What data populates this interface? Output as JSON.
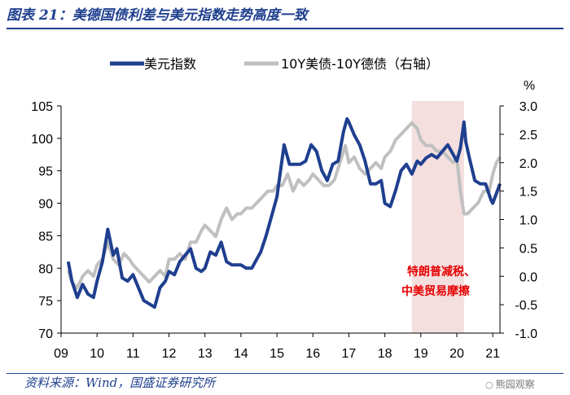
{
  "header": {
    "title": "图表 21：美德国债利差与美元指数走势高度一致"
  },
  "source": "资料来源：Wind，国盛证券研究所",
  "watermark": "熊园观察",
  "chart_data": {
    "type": "line",
    "legend": [
      "美元指数",
      "10Y美债-10Y德债（右轴）"
    ],
    "x_tick_labels": [
      "09",
      "10",
      "11",
      "12",
      "13",
      "14",
      "15",
      "16",
      "17",
      "18",
      "19",
      "20",
      "21"
    ],
    "x_range": [
      2009.0,
      2021.2
    ],
    "y_left": {
      "range": [
        70,
        105
      ],
      "ticks": [
        "70",
        "75",
        "80",
        "85",
        "90",
        "95",
        "100",
        "105"
      ]
    },
    "y_right": {
      "range": [
        -1.0,
        3.0
      ],
      "unit": "%",
      "ticks": [
        "-1.0",
        "-0.5",
        "0.0",
        "0.5",
        "1.0",
        "1.5",
        "2.0",
        "2.5",
        "3.0"
      ]
    },
    "highlight": {
      "x_start": 2018.75,
      "x_end": 2020.2,
      "color": "#f5dede",
      "annotation": [
        "特朗普减税、",
        "中美贸易摩擦"
      ]
    },
    "colors": {
      "usd_index": "#1f3f8f",
      "spread": "#c0c0c0",
      "axis": "#000000"
    },
    "series": [
      {
        "name": "美元指数",
        "axis": "left",
        "x": [
          2009.2,
          2009.3,
          2009.45,
          2009.6,
          2009.75,
          2009.9,
          2010.0,
          2010.15,
          2010.3,
          2010.45,
          2010.55,
          2010.7,
          2010.85,
          2011.0,
          2011.15,
          2011.3,
          2011.45,
          2011.6,
          2011.75,
          2011.9,
          2012.0,
          2012.15,
          2012.3,
          2012.45,
          2012.6,
          2012.75,
          2012.9,
          2013.0,
          2013.15,
          2013.3,
          2013.45,
          2013.6,
          2013.75,
          2013.9,
          2014.0,
          2014.15,
          2014.3,
          2014.45,
          2014.55,
          2014.7,
          2014.85,
          2015.0,
          2015.1,
          2015.2,
          2015.35,
          2015.5,
          2015.65,
          2015.8,
          2015.95,
          2016.1,
          2016.25,
          2016.4,
          2016.55,
          2016.7,
          2016.85,
          2016.95,
          2017.0,
          2017.15,
          2017.3,
          2017.45,
          2017.6,
          2017.75,
          2017.9,
          2018.0,
          2018.15,
          2018.3,
          2018.45,
          2018.6,
          2018.75,
          2018.9,
          2019.0,
          2019.15,
          2019.3,
          2019.45,
          2019.6,
          2019.75,
          2019.9,
          2020.0,
          2020.1,
          2020.2,
          2020.25,
          2020.35,
          2020.5,
          2020.65,
          2020.8,
          2020.95,
          2021.0,
          2021.1,
          2021.2
        ],
        "values": [
          81,
          78,
          75.5,
          77.5,
          76,
          75.5,
          78,
          81,
          86,
          82,
          83,
          78.5,
          78,
          79,
          77,
          75,
          74.5,
          74,
          77,
          78,
          79.5,
          79,
          81,
          82,
          83,
          80,
          79.5,
          80,
          82.5,
          82,
          84,
          81,
          80.5,
          80.5,
          80.5,
          80,
          80,
          81.5,
          82.5,
          85,
          88,
          91,
          95,
          99,
          96,
          96,
          96,
          96.5,
          99,
          98,
          95,
          93.5,
          96,
          96.5,
          101,
          103,
          102.5,
          100.5,
          99,
          96.5,
          93,
          93,
          93.5,
          90,
          89.5,
          92,
          95,
          96,
          94.5,
          96.5,
          96,
          97,
          97.5,
          97,
          98,
          99,
          97.5,
          96.5,
          98.5,
          102.5,
          99.5,
          97,
          93.5,
          93,
          93,
          90.5,
          90,
          91.5,
          93
        ]
      },
      {
        "name": "10Y美债-10Y德债（右轴）",
        "axis": "right",
        "x": [
          2009.2,
          2009.3,
          2009.45,
          2009.6,
          2009.75,
          2009.9,
          2010.0,
          2010.15,
          2010.3,
          2010.45,
          2010.6,
          2010.75,
          2010.9,
          2011.0,
          2011.15,
          2011.3,
          2011.45,
          2011.6,
          2011.75,
          2011.9,
          2012.0,
          2012.15,
          2012.3,
          2012.45,
          2012.6,
          2012.75,
          2012.9,
          2013.0,
          2013.15,
          2013.3,
          2013.45,
          2013.6,
          2013.75,
          2013.9,
          2014.0,
          2014.15,
          2014.3,
          2014.45,
          2014.6,
          2014.75,
          2014.9,
          2015.0,
          2015.15,
          2015.3,
          2015.45,
          2015.6,
          2015.75,
          2015.9,
          2016.0,
          2016.15,
          2016.3,
          2016.45,
          2016.6,
          2016.75,
          2016.9,
          2017.0,
          2017.15,
          2017.3,
          2017.45,
          2017.6,
          2017.75,
          2017.9,
          2018.0,
          2018.15,
          2018.3,
          2018.45,
          2018.6,
          2018.75,
          2018.9,
          2019.0,
          2019.15,
          2019.3,
          2019.45,
          2019.6,
          2019.75,
          2019.9,
          2020.0,
          2020.1,
          2020.2,
          2020.3,
          2020.45,
          2020.6,
          2020.75,
          2020.9,
          2021.0,
          2021.1,
          2021.2
        ],
        "values": [
          0.1,
          -0.1,
          -0.2,
          0.0,
          0.1,
          0.0,
          0.2,
          0.3,
          0.6,
          0.3,
          0.2,
          0.4,
          0.3,
          0.2,
          0.1,
          0.0,
          -0.1,
          0.0,
          0.1,
          0.0,
          0.3,
          0.3,
          0.4,
          0.3,
          0.6,
          0.6,
          0.8,
          0.9,
          0.8,
          0.7,
          1.0,
          1.2,
          1.0,
          1.1,
          1.1,
          1.2,
          1.2,
          1.3,
          1.4,
          1.5,
          1.5,
          1.6,
          1.6,
          1.8,
          1.5,
          1.7,
          1.6,
          1.7,
          1.8,
          1.7,
          1.6,
          1.6,
          1.7,
          2.0,
          2.3,
          2.0,
          2.1,
          1.9,
          1.8,
          1.9,
          2.0,
          1.9,
          2.1,
          2.2,
          2.4,
          2.5,
          2.6,
          2.7,
          2.6,
          2.4,
          2.3,
          2.3,
          2.2,
          2.2,
          2.1,
          2.0,
          2.1,
          1.5,
          1.1,
          1.1,
          1.2,
          1.3,
          1.5,
          1.5,
          1.8,
          2.0,
          2.1
        ]
      }
    ]
  }
}
